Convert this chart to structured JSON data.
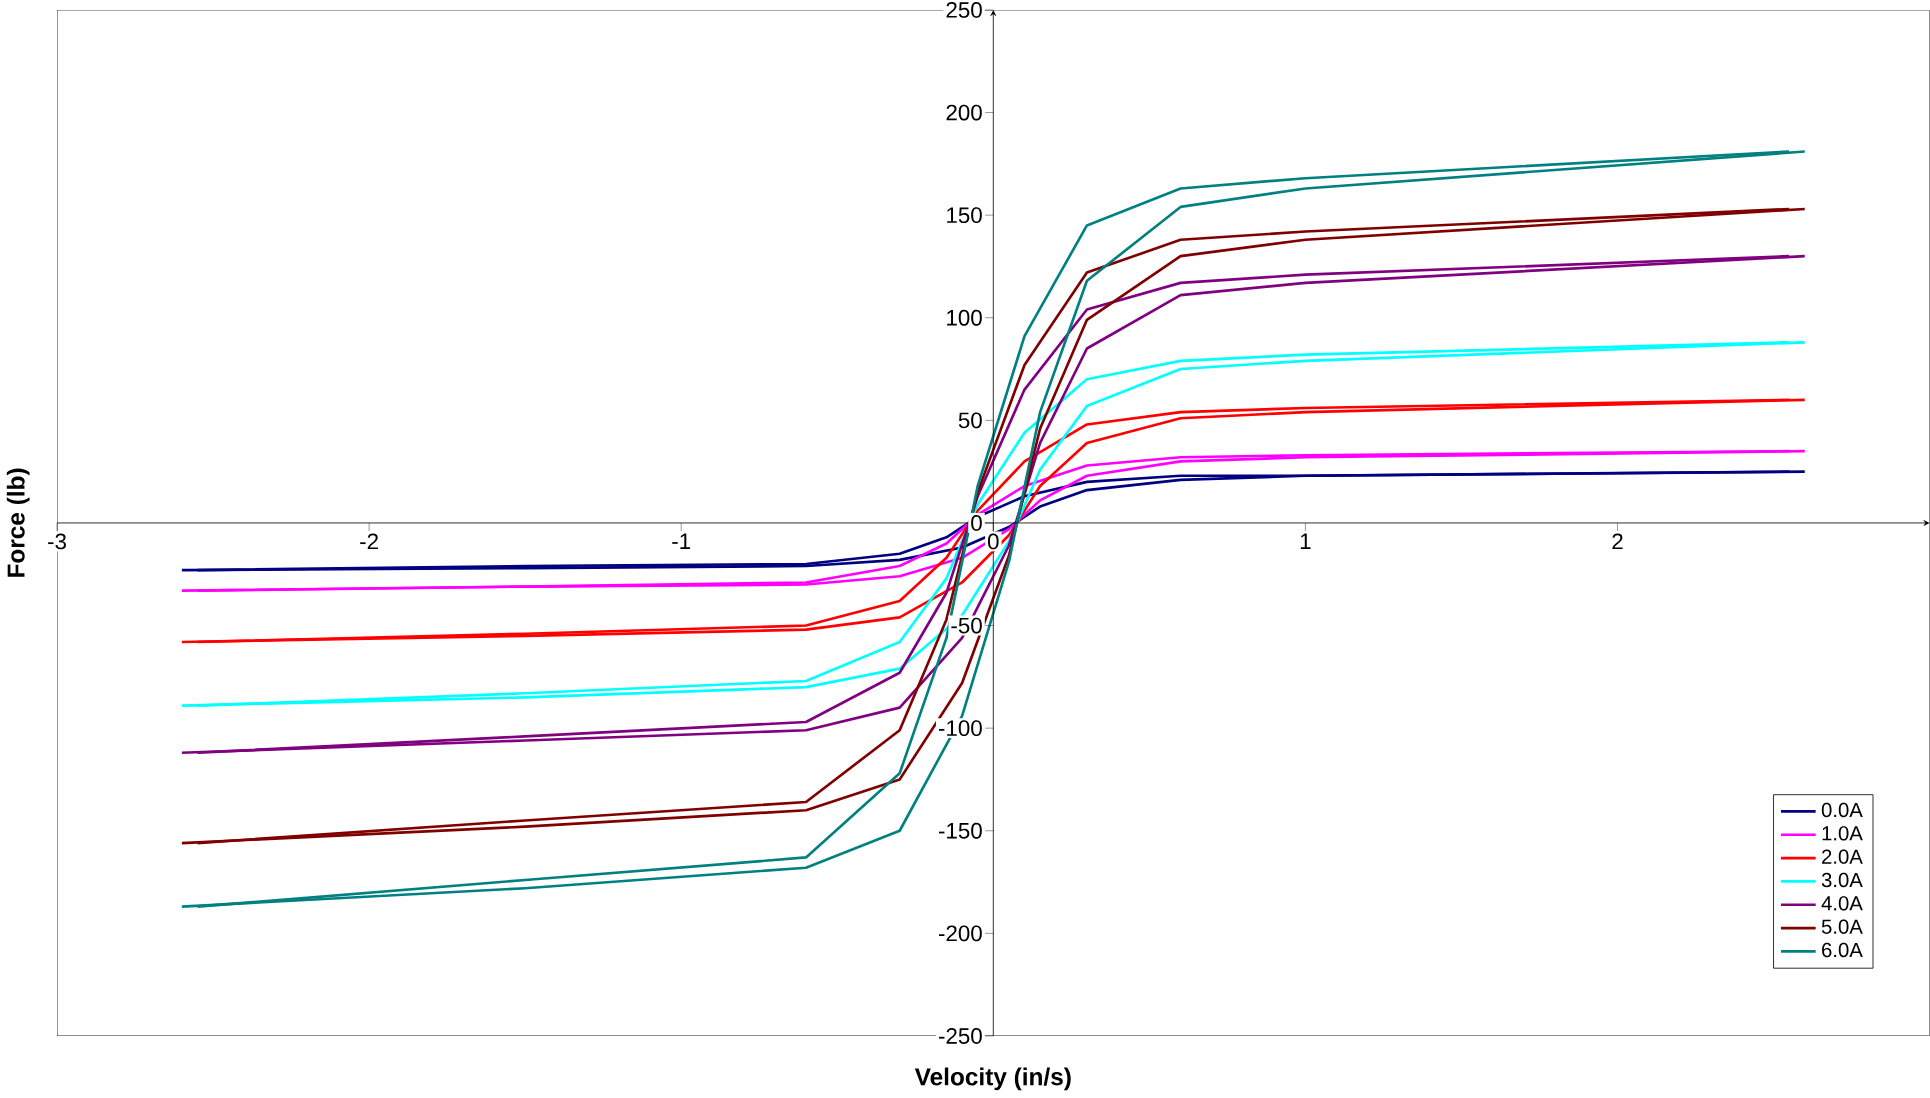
{
  "chart_data": {
    "type": "line",
    "xlabel": "Velocity (in/s)",
    "ylabel": "Force (lb)",
    "xlim": [
      -3,
      3
    ],
    "xticks": [
      -3,
      -2,
      -1,
      0,
      1,
      2
    ],
    "ylim": [
      -250,
      250
    ],
    "yticks": [
      -250,
      -200,
      -150,
      -100,
      -50,
      0,
      50,
      100,
      150,
      200,
      250
    ],
    "legend": "bottom right",
    "line_style": "solid",
    "series": [
      {
        "name": "0.0A",
        "color": "#000080",
        "x": [
          -2.6,
          -1.5,
          -0.6,
          -0.3,
          -0.1,
          0.05,
          0.15,
          0.3,
          0.6,
          1.0,
          2.6
        ],
        "values": [
          -23,
          -22,
          -21,
          -18,
          -12,
          -2,
          8,
          16,
          21,
          23,
          25
        ]
      },
      {
        "color": "#000080",
        "x": [
          -2.55,
          -1.5,
          -0.6,
          -0.3,
          -0.15,
          -0.05,
          0.1,
          0.3,
          0.6,
          1.0,
          2.55
        ],
        "values": [
          -23,
          -21,
          -20,
          -15,
          -7,
          3,
          13,
          20,
          23,
          23,
          25
        ]
      },
      {
        "name": "1.0A",
        "color": "#ff00ff",
        "x": [
          -2.6,
          -1.5,
          -0.6,
          -0.3,
          -0.1,
          0.05,
          0.15,
          0.3,
          0.6,
          1.0,
          2.6
        ],
        "values": [
          -33,
          -31,
          -30,
          -26,
          -17,
          -3,
          11,
          23,
          30,
          32,
          35
        ]
      },
      {
        "color": "#ff00ff",
        "x": [
          -2.55,
          -1.5,
          -0.6,
          -0.3,
          -0.15,
          -0.05,
          0.1,
          0.3,
          0.6,
          1.0,
          2.55
        ],
        "values": [
          -33,
          -31,
          -29,
          -21,
          -10,
          4,
          18,
          28,
          32,
          33,
          35
        ]
      },
      {
        "name": "2.0A",
        "color": "#ff0000",
        "x": [
          -2.6,
          -1.5,
          -0.6,
          -0.3,
          -0.1,
          0.05,
          0.15,
          0.3,
          0.6,
          1.0,
          2.6
        ],
        "values": [
          -58,
          -55,
          -52,
          -46,
          -29,
          -6,
          18,
          39,
          51,
          54,
          60
        ]
      },
      {
        "color": "#ff0000",
        "x": [
          -2.55,
          -1.5,
          -0.6,
          -0.3,
          -0.15,
          -0.05,
          0.1,
          0.3,
          0.6,
          1.0,
          2.55
        ],
        "values": [
          -58,
          -54,
          -50,
          -38,
          -17,
          6,
          30,
          48,
          54,
          56,
          60
        ]
      },
      {
        "name": "3.0A",
        "color": "#00ffff",
        "x": [
          -2.6,
          -1.5,
          -0.6,
          -0.3,
          -0.1,
          0.05,
          0.15,
          0.3,
          0.6,
          1.0,
          2.6
        ],
        "values": [
          -89,
          -85,
          -80,
          -71,
          -45,
          -9,
          26,
          57,
          75,
          79,
          88
        ]
      },
      {
        "color": "#00ffff",
        "x": [
          -2.55,
          -1.5,
          -0.6,
          -0.3,
          -0.15,
          -0.05,
          0.1,
          0.3,
          0.6,
          1.0,
          2.55
        ],
        "values": [
          -89,
          -83,
          -77,
          -58,
          -27,
          9,
          44,
          70,
          79,
          82,
          88
        ]
      },
      {
        "name": "4.0A",
        "color": "#800080",
        "x": [
          -2.6,
          -1.5,
          -0.6,
          -0.3,
          -0.1,
          0.05,
          0.15,
          0.3,
          0.6,
          1.0,
          2.6
        ],
        "values": [
          -112,
          -106,
          -101,
          -90,
          -56,
          -11,
          39,
          85,
          111,
          117,
          130
        ]
      },
      {
        "color": "#800080",
        "x": [
          -2.55,
          -1.5,
          -0.6,
          -0.3,
          -0.15,
          -0.05,
          0.1,
          0.3,
          0.6,
          1.0,
          2.55
        ],
        "values": [
          -112,
          -104,
          -97,
          -73,
          -34,
          13,
          65,
          104,
          117,
          121,
          130
        ]
      },
      {
        "name": "5.0A",
        "color": "#800000",
        "x": [
          -2.6,
          -1.5,
          -0.6,
          -0.3,
          -0.1,
          0.05,
          0.15,
          0.3,
          0.6,
          1.0,
          2.6
        ],
        "values": [
          -156,
          -148,
          -140,
          -125,
          -78,
          -16,
          46,
          99,
          130,
          138,
          153
        ]
      },
      {
        "color": "#800000",
        "x": [
          -2.55,
          -1.5,
          -0.6,
          -0.3,
          -0.15,
          -0.05,
          0.1,
          0.3,
          0.6,
          1.0,
          2.55
        ],
        "values": [
          -156,
          -145,
          -136,
          -101,
          -47,
          15,
          77,
          122,
          138,
          142,
          153
        ]
      },
      {
        "name": "6.0A",
        "color": "#008080",
        "x": [
          -2.6,
          -1.5,
          -0.6,
          -0.3,
          -0.1,
          0.05,
          0.15,
          0.3,
          0.6,
          1.0,
          2.6
        ],
        "values": [
          -187,
          -178,
          -168,
          -150,
          -94,
          -19,
          54,
          118,
          154,
          163,
          181
        ]
      },
      {
        "color": "#008080",
        "x": [
          -2.55,
          -1.5,
          -0.6,
          -0.3,
          -0.15,
          -0.05,
          0.1,
          0.3,
          0.6,
          1.0,
          2.55
        ],
        "values": [
          -187,
          -174,
          -163,
          -122,
          -56,
          18,
          91,
          145,
          163,
          168,
          181
        ]
      }
    ]
  }
}
